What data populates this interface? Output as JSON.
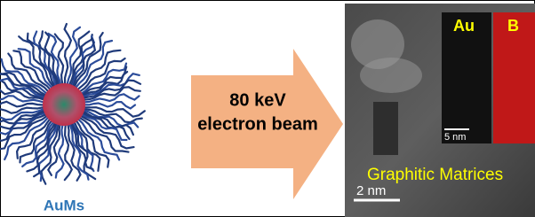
{
  "left_label": "AuMs",
  "arrow_text": [
    "80 keV",
    "electron beam"
  ],
  "micrograph": {
    "label": "Graphitic Matrices",
    "scale_bar": "2 nm"
  },
  "insets": [
    {
      "label": "Au",
      "scale_bar": "5 nm"
    },
    {
      "label": "B"
    }
  ]
}
